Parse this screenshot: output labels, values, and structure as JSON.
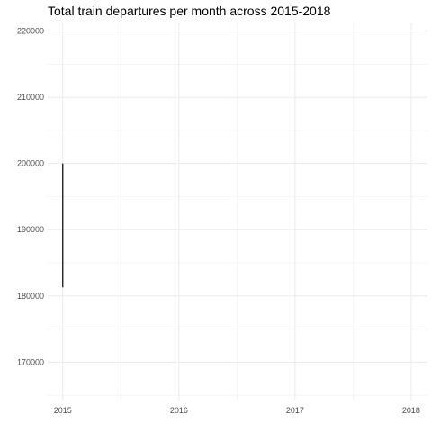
{
  "chart_data": {
    "type": "line",
    "title": "Total train departures per month across 2015-2018",
    "xlabel": "",
    "ylabel": "",
    "x_ticks": [
      "2015",
      "2016",
      "2017",
      "2018"
    ],
    "y_ticks": [
      "170000",
      "180000",
      "190000",
      "200000",
      "210000",
      "220000"
    ],
    "xlim": [
      2014.87,
      2018.14
    ],
    "ylim": [
      164200,
      221300
    ],
    "grid": true,
    "legend": "none",
    "series": [
      {
        "x": [
          2015.0,
          2015.0
        ],
        "y": [
          181300,
          200000
        ],
        "color": "#000000"
      }
    ]
  }
}
